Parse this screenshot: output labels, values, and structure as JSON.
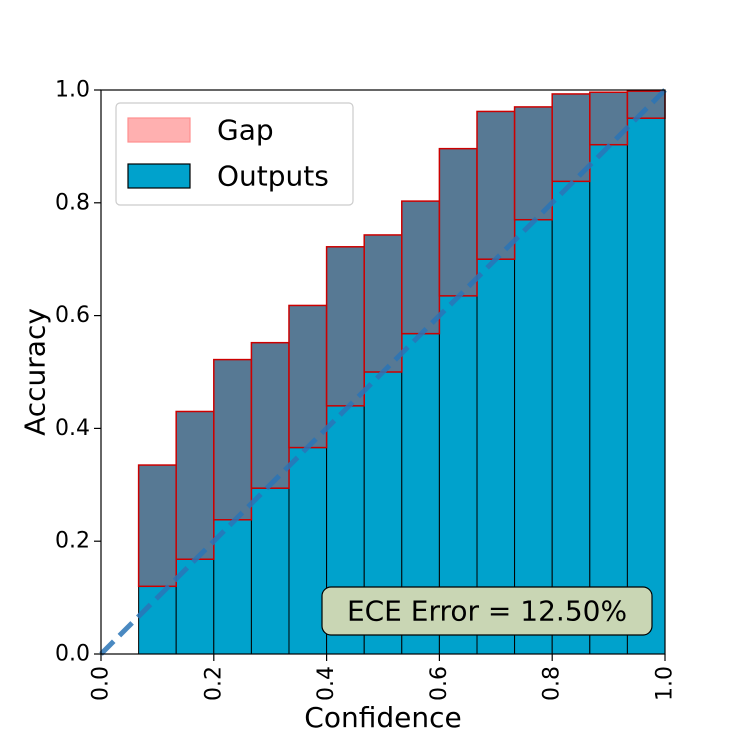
{
  "chart_data": {
    "type": "bar",
    "xlabel": "Confidence",
    "ylabel": "Accuracy",
    "xlim": [
      0.0,
      1.0
    ],
    "ylim": [
      0.0,
      1.0
    ],
    "x_ticks": [
      "0.0",
      "0.2",
      "0.4",
      "0.6",
      "0.8",
      "1.0"
    ],
    "y_ticks": [
      "0.0",
      "0.2",
      "0.4",
      "0.6",
      "0.8",
      "1.0"
    ],
    "grid": false,
    "legend": {
      "placement": "top-left",
      "entries": [
        {
          "label": "Gap",
          "color": "#ff9999"
        },
        {
          "label": "Outputs",
          "color": "#00a2cc"
        }
      ]
    },
    "bin_width": 0.0667,
    "bins_left": [
      0.0,
      0.0667,
      0.1333,
      0.2,
      0.2667,
      0.3333,
      0.4,
      0.4667,
      0.5333,
      0.6,
      0.6667,
      0.7333,
      0.8,
      0.8667,
      0.9333
    ],
    "series": [
      {
        "name": "Outputs",
        "values": [
          0.0,
          0.12,
          0.168,
          0.238,
          0.294,
          0.366,
          0.44,
          0.5,
          0.568,
          0.635,
          0.7,
          0.77,
          0.838,
          0.903,
          0.95
        ]
      },
      {
        "name": "Gap",
        "values": [
          0.0,
          0.335,
          0.43,
          0.522,
          0.552,
          0.618,
          0.722,
          0.743,
          0.803,
          0.896,
          0.962,
          0.97,
          0.993,
          0.996,
          0.998
        ]
      }
    ],
    "diagonal": {
      "from": [
        0.0,
        0.0
      ],
      "to": [
        1.0,
        1.0
      ],
      "style": "dashed"
    },
    "annotation": "ECE Error = 12.50%",
    "colors": {
      "outputs_fill": "#00a2cc",
      "gap_fill": "#4a6f8c",
      "gap_edge": "#cc0000",
      "legend_gap_fill": "#ffb0b0",
      "diagonal": "#2a74b6",
      "annotation_bg": "#c9d6b4"
    }
  }
}
